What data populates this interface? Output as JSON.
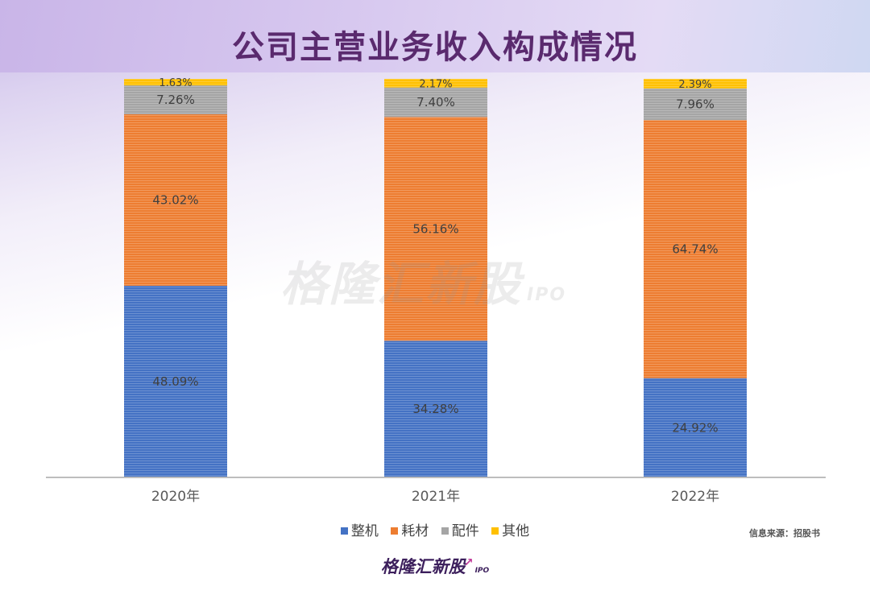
{
  "title": "公司主营业务收入构成情况",
  "legend": [
    {
      "label": "整机",
      "color": "#4472c4"
    },
    {
      "label": "耗材",
      "color": "#ed7d31"
    },
    {
      "label": "配件",
      "color": "#a5a5a5"
    },
    {
      "label": "其他",
      "color": "#ffc000"
    }
  ],
  "source": "信息来源：招股书",
  "watermark": "格隆汇新股",
  "watermark_suffix": "IPO",
  "logo": {
    "name": "格隆汇新股",
    "suffix": "IPO"
  },
  "chart_data": {
    "type": "bar",
    "stacked": true,
    "percent_stacked": true,
    "categories": [
      "2020年",
      "2021年",
      "2022年"
    ],
    "series": [
      {
        "name": "整机",
        "color": "#4472c4",
        "values": [
          48.09,
          34.28,
          24.92
        ],
        "labels": [
          "48.09%",
          "34.28%",
          "24.92%"
        ]
      },
      {
        "name": "耗材",
        "color": "#ed7d31",
        "values": [
          43.02,
          56.16,
          64.74
        ],
        "labels": [
          "43.02%",
          "56.16%",
          "64.74%"
        ]
      },
      {
        "name": "配件",
        "color": "#a5a5a5",
        "values": [
          7.26,
          7.4,
          7.96
        ],
        "labels": [
          "7.26%",
          "7.40%",
          "7.96%"
        ]
      },
      {
        "name": "其他",
        "color": "#ffc000",
        "values": [
          1.63,
          2.17,
          2.39
        ],
        "labels": [
          "1.63%",
          "2.17%",
          "2.39%"
        ]
      }
    ],
    "ylim": [
      0,
      100
    ],
    "grid": false,
    "legend_position": "bottom"
  }
}
